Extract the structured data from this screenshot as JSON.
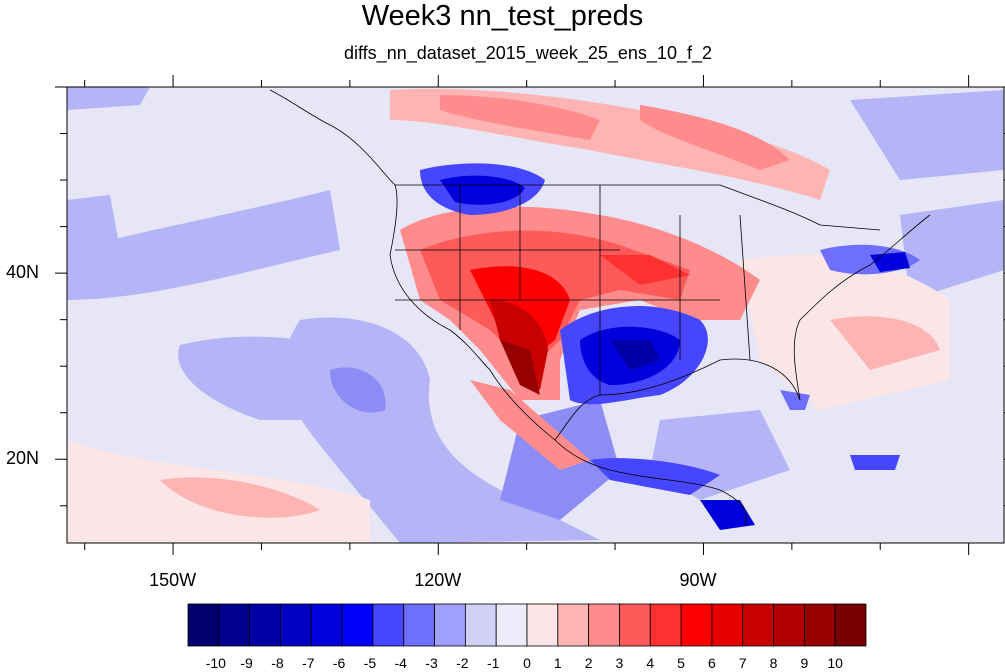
{
  "title": "Week3 nn_test_preds",
  "subtitle": "diffs_nn_dataset_2015_week_25_ens_10_f_2",
  "map": {
    "lon_range": [
      -162,
      -56
    ],
    "lat_range": [
      11,
      60
    ],
    "lon_ticks": [
      {
        "value": -150,
        "label": "150W"
      },
      {
        "value": -120,
        "label": "120W"
      },
      {
        "value": -90,
        "label": "90W"
      }
    ],
    "lat_ticks": [
      {
        "value": 40,
        "label": "40N"
      },
      {
        "value": 20,
        "label": "20N"
      }
    ]
  },
  "colorbar": {
    "levels": [
      "-10",
      "-9",
      "-8",
      "-7",
      "-6",
      "-5",
      "-4",
      "-3",
      "-2",
      "-1",
      "0",
      "1",
      "2",
      "3",
      "4",
      "5",
      "6",
      "7",
      "8",
      "9",
      "10"
    ],
    "colors": [
      "#00006e",
      "#00008c",
      "#0000a6",
      "#0000c0",
      "#0000dc",
      "#0000ff",
      "#4646ff",
      "#6e6eff",
      "#a0a0ff",
      "#d2d2f8",
      "#ececfa",
      "#fae6e6",
      "#ffb4b4",
      "#ff8c8c",
      "#ff5a5a",
      "#ff3030",
      "#ff0000",
      "#e60000",
      "#c80000",
      "#b00000",
      "#960000",
      "#780000"
    ]
  }
}
